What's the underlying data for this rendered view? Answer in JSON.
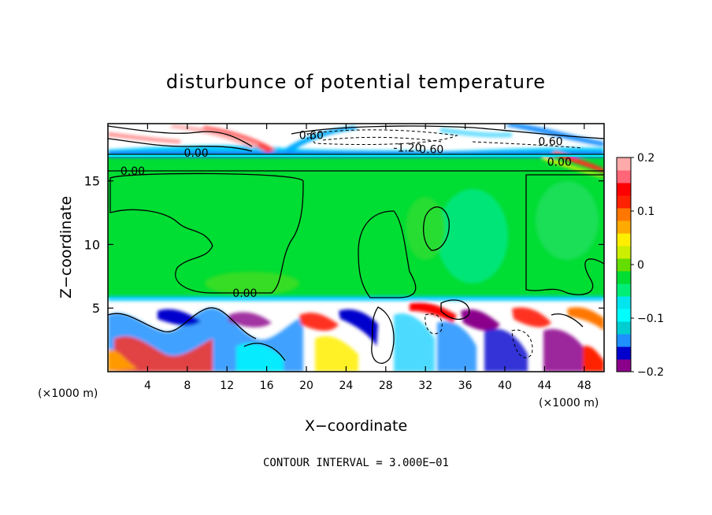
{
  "chart_data": {
    "type": "heatmap",
    "title": "disturbunce of potential temperature",
    "xlabel": "X−coordinate",
    "ylabel": "Z−coordinate",
    "x_unit_label": "(×1000 m)",
    "y_unit_label": "(×1000 m)",
    "xlim": [
      0,
      50
    ],
    "ylim": [
      0,
      19.5
    ],
    "x_ticks": [
      4,
      8,
      12,
      16,
      20,
      24,
      28,
      32,
      36,
      40,
      44,
      48
    ],
    "y_ticks": [
      5,
      10,
      15
    ],
    "colorbar": {
      "range": [
        -0.2,
        0.2
      ],
      "tick_values": [
        0.2,
        0.1,
        0,
        -0.1,
        -0.2
      ],
      "tick_labels": [
        "0.2",
        "0.1",
        "0",
        "−0.1",
        "−0.2"
      ],
      "colors": [
        "#8b008b",
        "#0000cd",
        "#1e90ff",
        "#00ced1",
        "#00ffff",
        "#00e5ee",
        "#00ee76",
        "#00dd33",
        "#66dd00",
        "#ccee00",
        "#ffee00",
        "#ffaa00",
        "#ff7700",
        "#ff2200",
        "#ff0000",
        "#ff6677",
        "#ffaaaa"
      ]
    },
    "contour_labels": [
      {
        "text": "0.60",
        "x": 20.5,
        "z": 18.6
      },
      {
        "text": "0.00",
        "x": 8.9,
        "z": 17.2
      },
      {
        "text": "-1.20",
        "x": 30.2,
        "z": 17.6
      },
      {
        "text": "0.60",
        "x": 32.6,
        "z": 17.5
      },
      {
        "text": "0.60",
        "x": 44.6,
        "z": 18.1
      },
      {
        "text": "0.00",
        "x": 45.5,
        "z": 16.5
      },
      {
        "text": "0.00",
        "x": 2.5,
        "z": 15.8
      },
      {
        "text": "0.00",
        "x": 13.8,
        "z": 6.2
      }
    ],
    "contour_interval_text": "CONTOUR INTERVAL = 3.000E−01"
  }
}
